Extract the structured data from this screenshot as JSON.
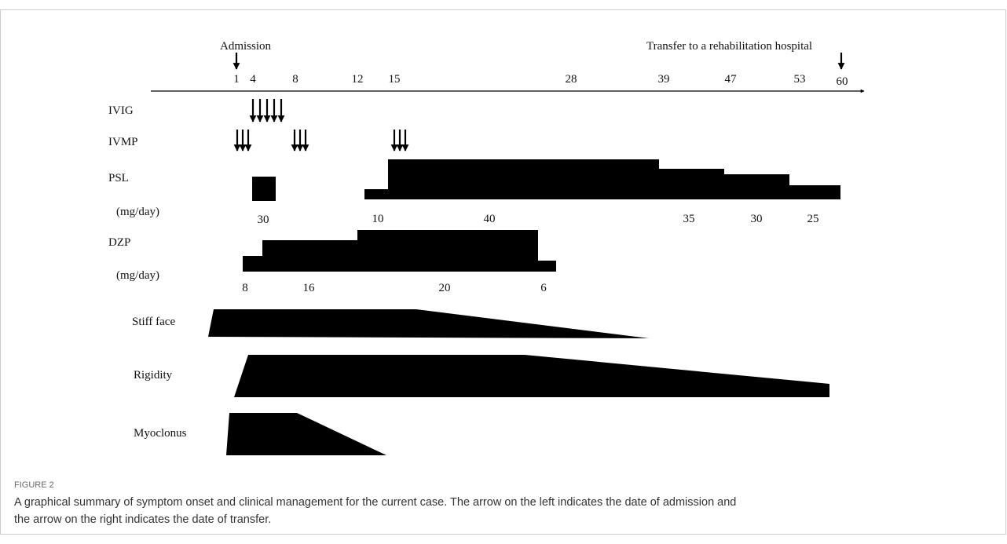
{
  "figure": {
    "events": {
      "admission": "Admission",
      "transfer": "Transfer to a rehabilitation hospital"
    },
    "days": [
      1,
      4,
      8,
      12,
      15,
      28,
      39,
      47,
      53,
      60
    ],
    "rows": {
      "ivig": "IVIG",
      "ivmp": "IVMP",
      "psl": "PSL",
      "psl_unit": "(mg/day)",
      "dzp": "DZP",
      "dzp_unit": "(mg/day)",
      "stiff_face": "Stiff face",
      "rigidity": "Rigidity",
      "myoclonus": "Myoclonus"
    },
    "psl_doses": [
      30,
      10,
      40,
      35,
      30,
      25
    ],
    "dzp_doses": [
      8,
      16,
      20,
      6
    ]
  },
  "caption": {
    "label": "FIGURE 2",
    "lines": [
      "A graphical summary of symptom onset and clinical management for the current case. The arrow on the left indicates the date of admission and",
      "the arrow on the right indicates the date of transfer."
    ]
  }
}
